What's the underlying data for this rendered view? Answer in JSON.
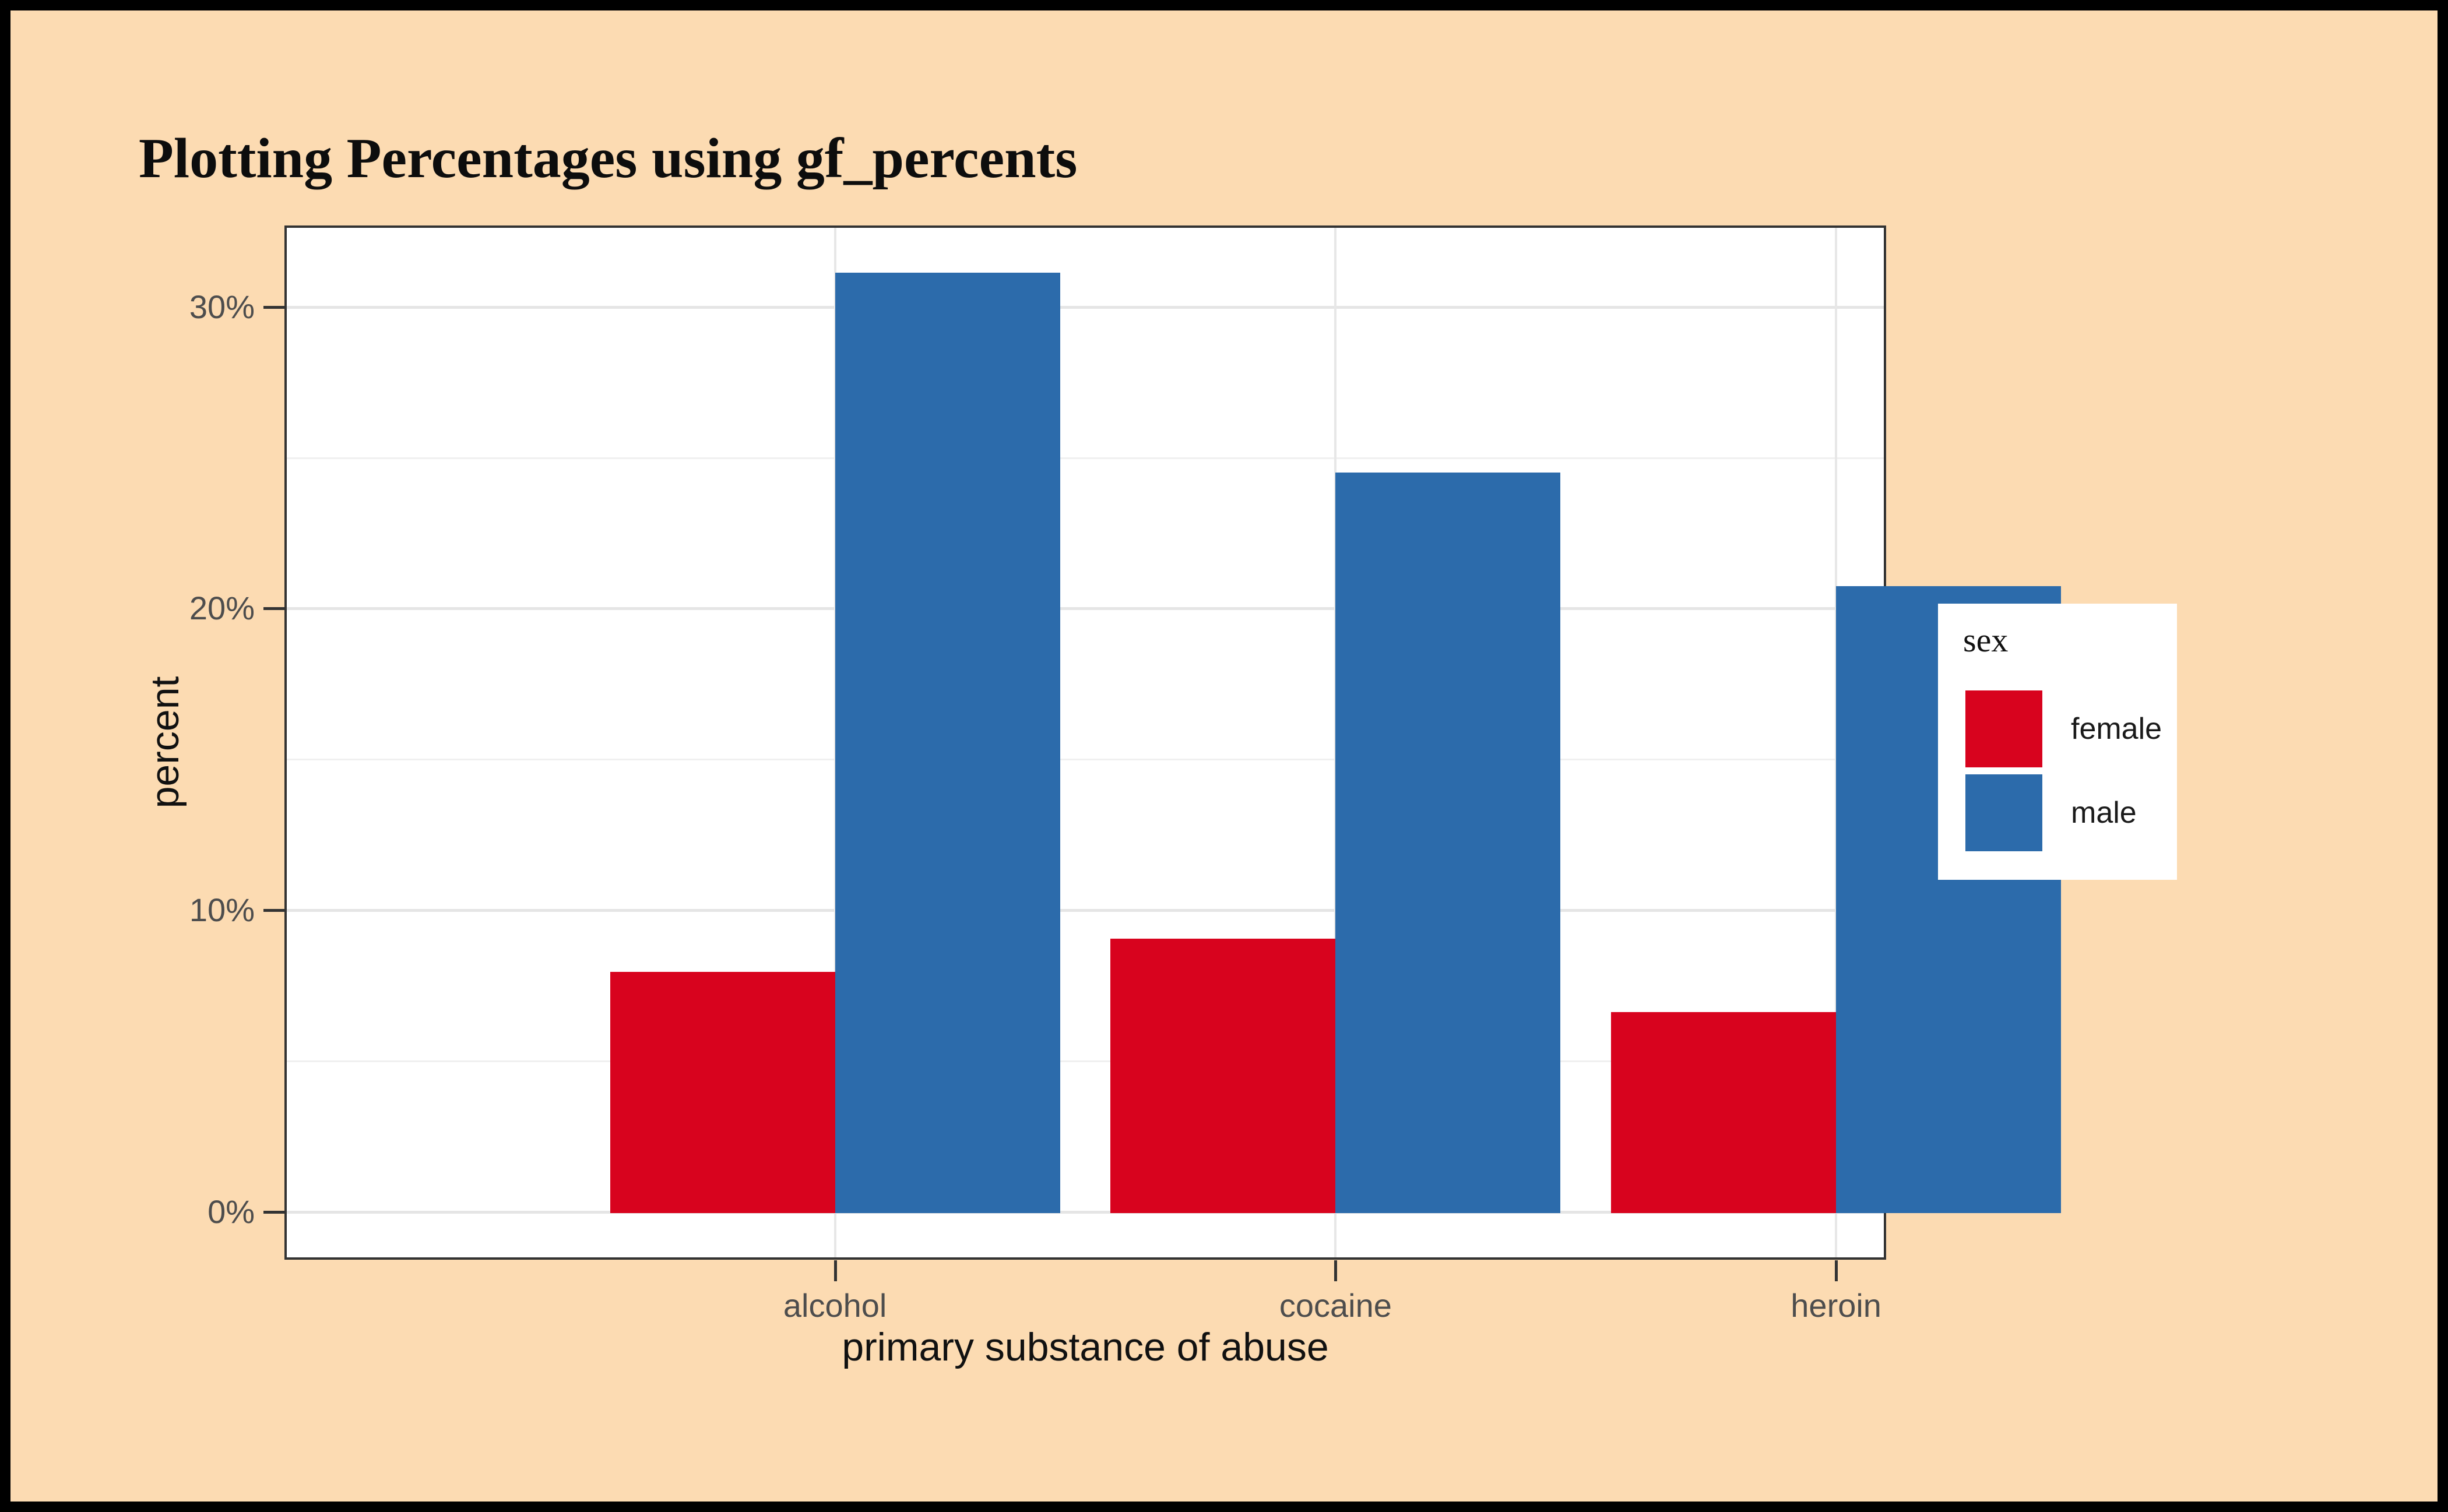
{
  "figure": {
    "title": "Plotting Percentages using gf_percents"
  },
  "colors": {
    "page_background": "#FCDBB2",
    "outer_border": "#000000",
    "panel_background": "#FFFFFF",
    "panel_border": "#333333",
    "grid_major": "#E5E5E5",
    "grid_minor": "#F0F0F0",
    "tick": "#333333",
    "tick_label": "#4D4D4D",
    "female": "#D8031E",
    "male": "#2C6BAB"
  },
  "legend": {
    "title": "sex",
    "entries": [
      {
        "label": "female",
        "color": "#D8031E"
      },
      {
        "label": "male",
        "color": "#2C6BAB"
      }
    ]
  },
  "chart_data": {
    "type": "bar",
    "grouping": "dodged",
    "title": "Plotting Percentages using gf_percents",
    "xlabel": "primary substance of abuse",
    "ylabel": "percent",
    "categories": [
      "alcohol",
      "cocaine",
      "heroin"
    ],
    "series": [
      {
        "name": "female",
        "color": "#D8031E",
        "values": [
          7.95,
          9.05,
          6.62
        ]
      },
      {
        "name": "male",
        "color": "#2C6BAB",
        "values": [
          31.13,
          24.5,
          20.75
        ]
      }
    ],
    "ylim": [
      -1.56,
      32.69
    ],
    "y_major_breaks": [
      0,
      10,
      20,
      30
    ],
    "y_tick_labels": [
      "0%",
      "10%",
      "20%",
      "30%"
    ],
    "y_minor_breaks": [
      5,
      15,
      25
    ],
    "grid": true,
    "legend_position": "right",
    "legend_title": "sex"
  }
}
